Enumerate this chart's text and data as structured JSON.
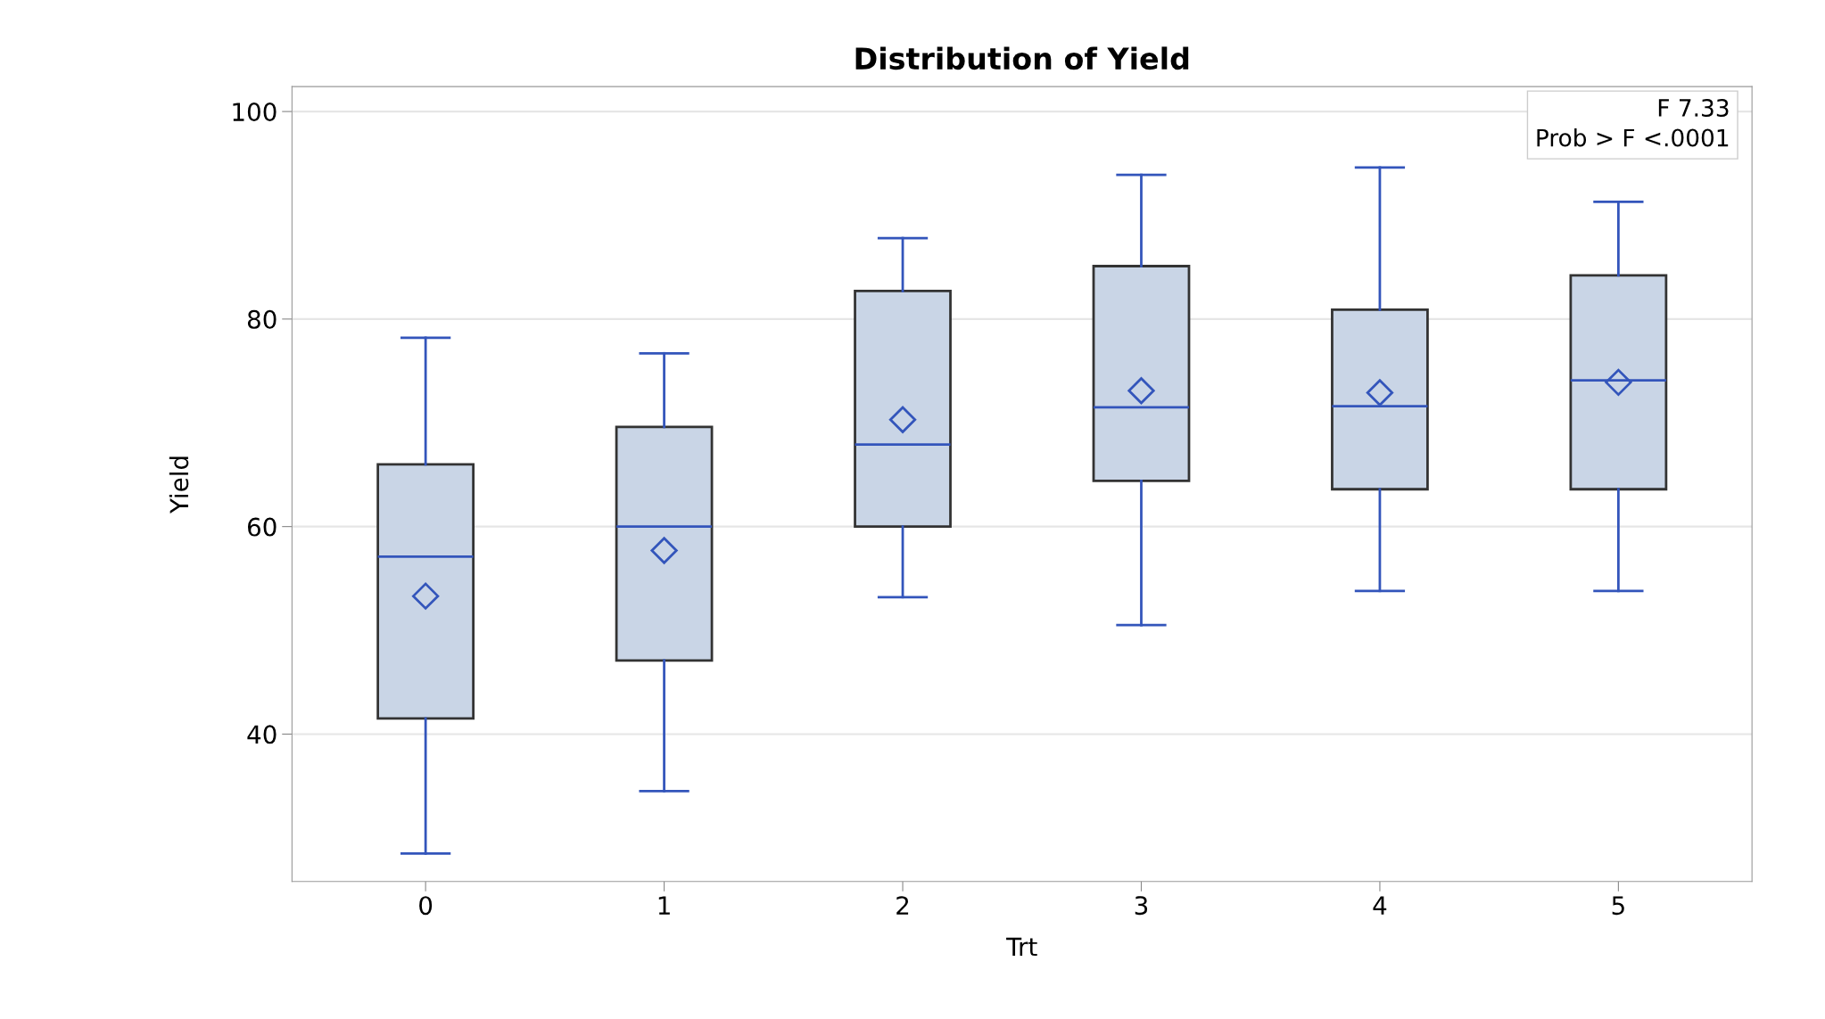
{
  "chart_data": {
    "type": "box",
    "title": "Distribution of Yield",
    "xlabel": "Trt",
    "ylabel": "Yield",
    "categories": [
      "0",
      "1",
      "2",
      "3",
      "4",
      "5"
    ],
    "boxes": [
      {
        "low": 28.5,
        "q1": 41.5,
        "median": 57.1,
        "q3": 66.0,
        "high": 78.2,
        "mean": 53.3
      },
      {
        "low": 34.5,
        "q1": 47.1,
        "median": 60.0,
        "q3": 69.6,
        "high": 76.7,
        "mean": 57.7
      },
      {
        "low": 53.2,
        "q1": 60.0,
        "median": 67.9,
        "q3": 82.7,
        "high": 87.8,
        "mean": 70.3
      },
      {
        "low": 50.5,
        "q1": 64.4,
        "median": 71.5,
        "q3": 85.1,
        "high": 93.9,
        "mean": 73.1
      },
      {
        "low": 53.8,
        "q1": 63.6,
        "median": 71.6,
        "q3": 80.9,
        "high": 94.6,
        "mean": 72.9
      },
      {
        "low": 53.8,
        "q1": 63.6,
        "median": 74.1,
        "q3": 84.2,
        "high": 91.3,
        "mean": 73.9
      }
    ],
    "color": "#c9d5e6",
    "ylim": [
      25.8,
      102.4
    ],
    "yticks": [
      40,
      60,
      80,
      100
    ],
    "grid": "y",
    "marker": "diamond",
    "annotations": [
      "F 7.33",
      "Prob > F <.0001"
    ]
  }
}
